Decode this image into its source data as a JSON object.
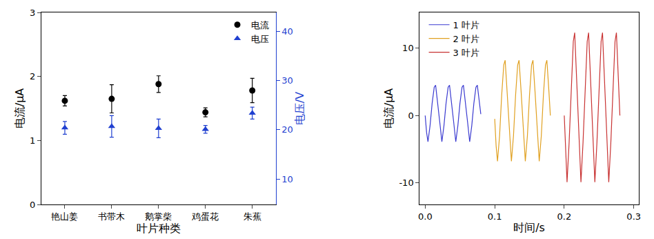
{
  "chart_data": [
    {
      "type": "scatter",
      "x_label": "叶片种类",
      "y_label": "电流/μA",
      "y2_label": "电压/V",
      "categories": [
        "艳山姜",
        "书带木",
        "鹅掌柴",
        "鸡蛋花",
        "朱蕉"
      ],
      "ylim": [
        0,
        3
      ],
      "yticks": [
        0,
        1,
        2,
        3
      ],
      "y2lim": [
        4.8,
        43.9
      ],
      "y2ticks": [
        10,
        20,
        30,
        40
      ],
      "grid": false,
      "legend": "upper right",
      "series": [
        {
          "name": "电流",
          "color": "#000000",
          "marker": "circle",
          "values": [
            1.62,
            1.65,
            1.88,
            1.44,
            1.78
          ],
          "error": [
            0.08,
            0.22,
            0.13,
            0.07,
            0.19
          ]
        },
        {
          "name": "电压",
          "color": "#1f3fd0",
          "marker": "triangle-up",
          "axis": "y2",
          "values": [
            20.4,
            20.7,
            20.3,
            20.1,
            23.4
          ],
          "error": [
            1.3,
            2.2,
            1.9,
            0.8,
            1.2
          ]
        }
      ]
    },
    {
      "type": "line",
      "x_label": "时间/s",
      "y_label": "电流/μA",
      "xlim": [
        -0.008,
        0.307
      ],
      "xticks": [
        {
          "value": 0,
          "label": "0.0"
        },
        0.1,
        0.2,
        0.3
      ],
      "ylim": [
        -13.2,
        15.3
      ],
      "yticks": [
        -10,
        0,
        10
      ],
      "grid": false,
      "legend": "upper left",
      "series": [
        {
          "name": "1 叶片",
          "color": "#3a3ad0",
          "x": [
            0,
            0.002,
            0.004,
            0.007,
            0.01,
            0.013,
            0.015,
            0.018,
            0.021,
            0.024,
            0.027,
            0.03,
            0.033,
            0.035,
            0.038,
            0.041,
            0.044,
            0.047,
            0.05,
            0.053,
            0.055,
            0.058,
            0.061,
            0.064,
            0.067,
            0.07,
            0.073,
            0.075,
            0.078,
            0.08
          ],
          "values": [
            0,
            -2.5,
            -3.9,
            -1.5,
            1.8,
            4.2,
            4.5,
            2.0,
            -1.0,
            -3.9,
            -1.5,
            1.8,
            4.2,
            4.5,
            2.0,
            -1.0,
            -3.9,
            -1.5,
            1.8,
            4.2,
            4.5,
            2.0,
            -1.0,
            -3.9,
            -1.5,
            1.8,
            4.2,
            4.5,
            2.0,
            0.2
          ]
        },
        {
          "name": "2 叶片",
          "color": "#e0a020",
          "x": [
            0.1,
            0.102,
            0.104,
            0.107,
            0.11,
            0.113,
            0.115,
            0.118,
            0.121,
            0.124,
            0.127,
            0.13,
            0.133,
            0.135,
            0.138,
            0.141,
            0.144,
            0.147,
            0.15,
            0.153,
            0.155,
            0.158,
            0.161,
            0.164,
            0.167,
            0.17,
            0.173,
            0.175,
            0.178,
            0.18
          ],
          "values": [
            -0.5,
            -4.5,
            -6.8,
            -3.0,
            3.0,
            7.5,
            8.2,
            3.5,
            -2.0,
            -6.8,
            -3.0,
            3.0,
            7.5,
            8.2,
            3.5,
            -2.0,
            -6.8,
            -3.0,
            3.0,
            7.5,
            8.2,
            3.5,
            -2.0,
            -6.8,
            -3.0,
            3.0,
            7.5,
            8.2,
            3.5,
            0.0
          ]
        },
        {
          "name": "3 叶片",
          "color": "#c83232",
          "x": [
            0.2,
            0.202,
            0.204,
            0.207,
            0.21,
            0.213,
            0.215,
            0.218,
            0.221,
            0.224,
            0.227,
            0.23,
            0.233,
            0.235,
            0.238,
            0.241,
            0.244,
            0.247,
            0.25,
            0.253,
            0.255,
            0.258,
            0.261,
            0.264,
            0.267,
            0.27,
            0.273,
            0.275,
            0.278,
            0.28
          ],
          "values": [
            0,
            -6.0,
            -9.9,
            -4.0,
            4.0,
            11.0,
            12.3,
            5.0,
            -3.0,
            -9.9,
            -4.0,
            4.0,
            11.0,
            12.3,
            5.0,
            -3.0,
            -9.9,
            -4.0,
            4.0,
            11.0,
            12.3,
            5.0,
            -3.0,
            -9.9,
            -4.0,
            4.0,
            11.0,
            12.3,
            5.0,
            0
          ]
        }
      ]
    }
  ]
}
